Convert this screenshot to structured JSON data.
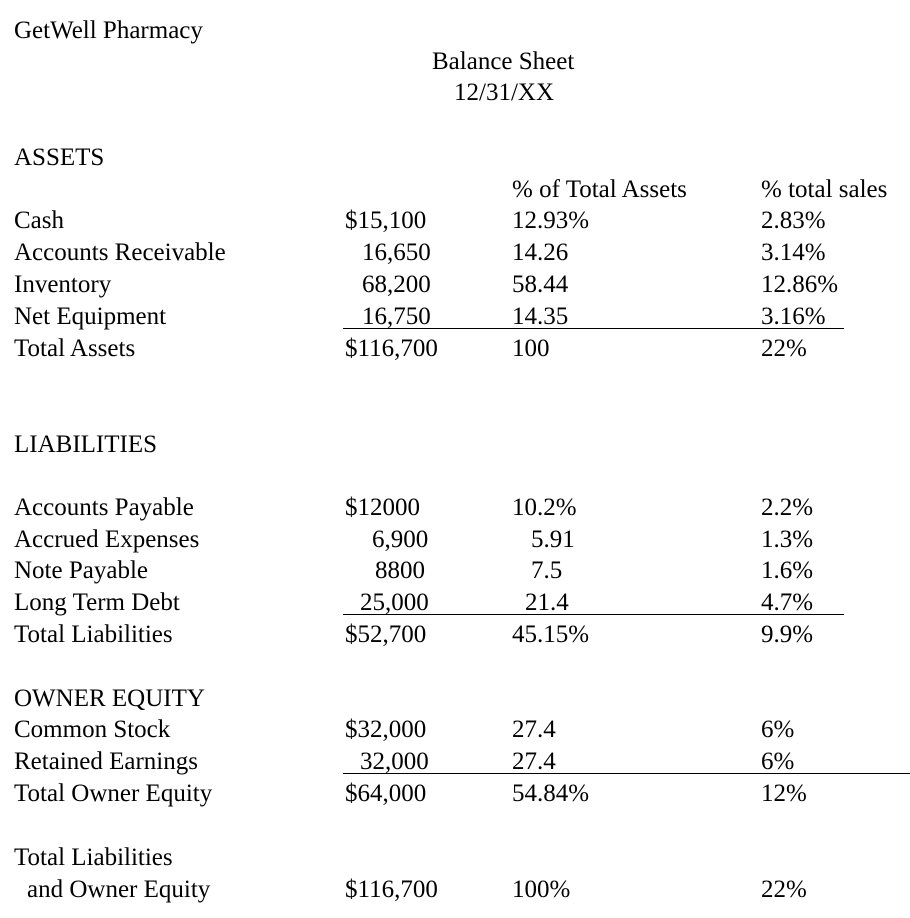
{
  "company": "GetWell Pharmacy",
  "title": "Balance Sheet",
  "date": "12/31/XX",
  "assets": {
    "heading": "ASSETS",
    "col_pct_assets": "% of Total Assets",
    "col_pct_sales": "% total sales",
    "rows": [
      {
        "label": "Cash",
        "amount": "$15,100",
        "pct_assets": "12.93%",
        "pct_sales": "2.83%"
      },
      {
        "label": "Accounts Receivable",
        "amount": "16,650",
        "pct_assets": "14.26",
        "pct_sales": "3.14%"
      },
      {
        "label": "Inventory",
        "amount": "68,200",
        "pct_assets": "58.44",
        "pct_sales": "12.86%"
      },
      {
        "label": "Net Equipment",
        "amount": "16,750",
        "pct_assets": "14.35",
        "pct_sales": "3.16%"
      }
    ],
    "total": {
      "label": "Total Assets",
      "amount": "$116,700",
      "pct_assets": "100",
      "pct_sales": "22%"
    }
  },
  "liabilities": {
    "heading": "LIABILITIES",
    "rows": [
      {
        "label": "Accounts Payable",
        "amount": "$12000",
        "pct_assets": "10.2%",
        "pct_sales": "2.2%"
      },
      {
        "label": "Accrued Expenses",
        "amount": "6,900",
        "pct_assets": "5.91",
        "pct_sales": "1.3%"
      },
      {
        "label": "Note Payable",
        "amount": "8800",
        "pct_assets": "7.5",
        "pct_sales": "1.6%"
      },
      {
        "label": "Long Term Debt",
        "amount": "25,000",
        "pct_assets": "21.4",
        "pct_sales": "4.7%"
      }
    ],
    "total": {
      "label": "Total Liabilities",
      "amount": "$52,700",
      "pct_assets": "45.15%",
      "pct_sales": "9.9%"
    }
  },
  "equity": {
    "heading": "OWNER EQUITY",
    "rows": [
      {
        "label": "Common Stock",
        "amount": "$32,000",
        "pct_assets": "27.4",
        "pct_sales": "6%"
      },
      {
        "label": "Retained Earnings",
        "amount": "32,000",
        "pct_assets": "27.4",
        "pct_sales": "6%"
      }
    ],
    "total": {
      "label": "Total Owner Equity",
      "amount": "$64,000",
      "pct_assets": "54.84%",
      "pct_sales": "12%"
    }
  },
  "grand_total": {
    "label_line1": "Total Liabilities",
    "label_line2": "and Owner Equity",
    "amount": "$116,700",
    "pct_assets": "100%",
    "pct_sales": "22%"
  }
}
